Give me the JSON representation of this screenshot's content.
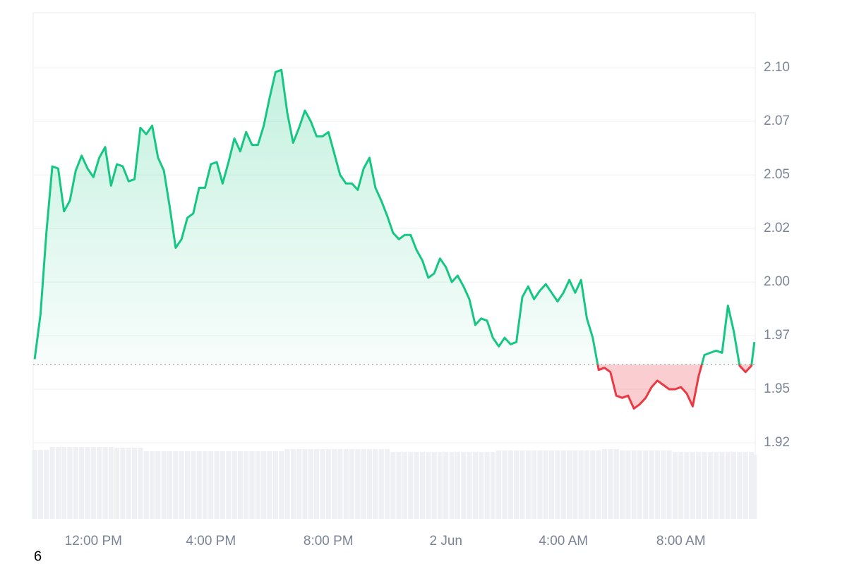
{
  "chart_data": {
    "type": "line",
    "x": [
      10,
      10.2,
      10.4,
      10.6,
      10.8,
      11,
      11.2,
      11.4,
      11.6,
      11.8,
      12,
      12.2,
      12.4,
      12.6,
      12.8,
      13,
      13.2,
      13.4,
      13.6,
      13.8,
      14,
      14.2,
      14.4,
      14.6,
      14.8,
      15,
      15.2,
      15.4,
      15.6,
      15.8,
      16,
      16.2,
      16.4,
      16.6,
      16.8,
      17,
      17.2,
      17.4,
      17.6,
      17.8,
      18,
      18.2,
      18.4,
      18.6,
      18.8,
      19,
      19.2,
      19.4,
      19.6,
      19.8,
      20,
      20.2,
      20.4,
      20.6,
      20.8,
      21,
      21.2,
      21.4,
      21.6,
      21.8,
      22,
      22.2,
      22.4,
      22.6,
      22.8,
      23,
      23.2,
      23.4,
      23.6,
      23.8,
      24,
      24.2,
      24.4,
      24.6,
      24.8,
      25,
      25.2,
      25.4,
      25.6,
      25.8,
      26,
      26.2,
      26.4,
      26.6,
      26.8,
      27,
      27.2,
      27.4,
      27.6,
      27.8,
      28,
      28.2,
      28.4,
      28.6,
      28.8,
      29,
      29.2,
      29.4,
      29.6,
      29.8,
      30,
      30.2,
      30.4,
      30.6,
      30.8,
      31,
      31.2,
      31.4,
      31.6,
      31.8,
      32,
      32.2,
      32.4,
      32.6,
      32.8,
      33,
      33.2,
      33.4,
      33.6,
      33.8,
      34,
      34.2,
      34.4,
      34.5
    ],
    "series": [
      {
        "values": [
          1.964,
          1.985,
          2.023,
          2.054,
          2.053,
          2.033,
          2.038,
          2.052,
          2.059,
          2.053,
          2.049,
          2.058,
          2.063,
          2.045,
          2.055,
          2.054,
          2.047,
          2.048,
          2.072,
          2.069,
          2.073,
          2.058,
          2.052,
          2.035,
          2.016,
          2.02,
          2.03,
          2.032,
          2.044,
          2.044,
          2.055,
          2.056,
          2.046,
          2.056,
          2.067,
          2.061,
          2.07,
          2.064,
          2.064,
          2.073,
          2.086,
          2.098,
          2.099,
          2.079,
          2.065,
          2.072,
          2.08,
          2.075,
          2.068,
          2.068,
          2.07,
          2.06,
          2.05,
          2.046,
          2.046,
          2.043,
          2.053,
          2.058,
          2.044,
          2.038,
          2.031,
          2.023,
          2.02,
          2.022,
          2.022,
          2.015,
          2.01,
          2.002,
          2.004,
          2.011,
          2.007,
          2.0,
          2.003,
          1.998,
          1.992,
          1.98,
          1.983,
          1.982,
          1.974,
          1.97,
          1.974,
          1.971,
          1.972,
          1.993,
          1.998,
          1.992,
          1.996,
          1.999,
          1.995,
          1.991,
          1.995,
          2.001,
          1.995,
          2.001,
          1.983,
          1.974,
          1.959,
          1.96,
          1.958,
          1.947,
          1.946,
          1.947,
          1.941,
          1.943,
          1.946,
          1.951,
          1.954,
          1.952,
          1.95,
          1.95,
          1.951,
          1.948,
          1.942,
          1.956,
          1.966,
          1.967,
          1.968,
          1.967,
          1.989,
          1.977,
          1.961,
          1.958,
          1.961,
          1.972
        ],
        "color": "#16c784",
        "color_below": "#ea3943"
      }
    ],
    "volume": [
      97,
      97,
      97,
      101,
      101,
      101,
      101,
      101,
      101,
      101,
      101,
      101,
      101,
      101,
      100,
      100,
      100,
      100,
      100,
      95,
      95,
      95,
      95,
      95,
      95,
      95,
      95,
      95,
      95,
      95,
      95,
      95,
      95,
      95,
      95,
      95,
      95,
      95,
      95,
      95,
      95,
      95,
      95,
      98,
      98,
      98,
      98,
      98,
      98,
      98,
      98,
      98,
      98,
      98,
      98,
      98,
      98,
      98,
      98,
      98,
      98,
      94,
      94,
      94,
      94,
      94,
      94,
      94,
      94,
      94,
      94,
      94,
      94,
      94,
      94,
      94,
      94,
      94,
      94,
      96,
      96,
      96,
      96,
      96,
      96,
      96,
      96,
      96,
      96,
      96,
      96,
      96,
      96,
      96,
      96,
      96,
      96,
      98,
      98,
      98,
      96,
      96,
      96,
      96,
      96,
      96,
      96,
      96,
      96,
      94,
      94,
      94,
      94,
      94,
      94,
      94,
      94,
      94,
      94,
      94,
      94,
      94,
      94,
      90
    ],
    "baseline": 1.9615,
    "ylim": [
      1.8895,
      2.1257
    ],
    "yticks": [
      {
        "value": 1.925,
        "label": "1.92"
      },
      1.95,
      {
        "value": 1.975,
        "label": "1.97"
      },
      {
        "value": 2,
        "label": "2.00"
      },
      {
        "value": 2.025,
        "label": "2.02"
      },
      2.05,
      {
        "value": 2.075,
        "label": "2.07"
      },
      {
        "value": 2.1,
        "label": "2.10"
      }
    ],
    "xlim": [
      9.95,
      34.53
    ],
    "xticks": [
      {
        "value": 12,
        "label": "12:00 PM"
      },
      {
        "value": 16,
        "label": "4:00 PM"
      },
      {
        "value": 20,
        "label": "8:00 PM"
      },
      {
        "value": 24,
        "label": "2 Jun"
      },
      {
        "value": 28,
        "label": "4:00 AM"
      },
      {
        "value": 32,
        "label": "8:00 AM"
      }
    ],
    "grid": true,
    "footnote": "6"
  }
}
